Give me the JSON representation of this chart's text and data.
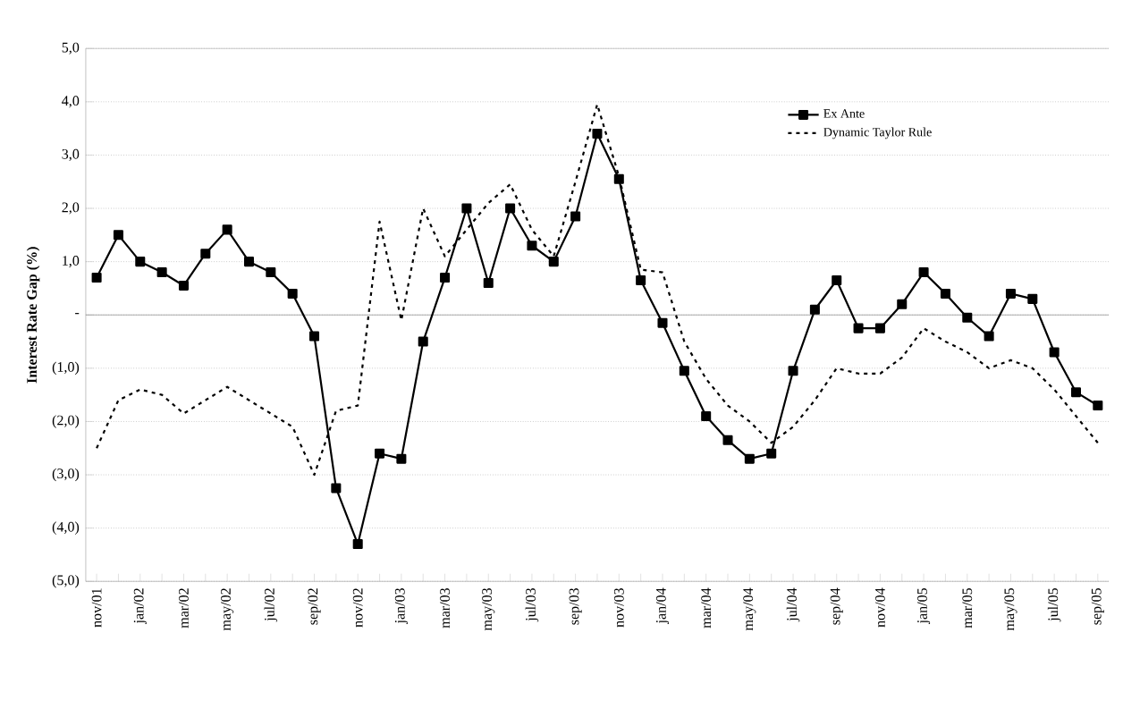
{
  "chart_data": {
    "type": "line",
    "ylabel": "**Interest Rate Gap (%)**",
    "categories": [
      "nov/01",
      null,
      "jan/02",
      null,
      "mar/02",
      null,
      "may/02",
      null,
      "jul/02",
      null,
      "sep/02",
      null,
      "nov/02",
      null,
      "jan/03",
      null,
      "mar/03",
      null,
      "may/03",
      null,
      "jul/03",
      null,
      "sep/03",
      null,
      "nov/03",
      null,
      "jan/04",
      null,
      "mar/04",
      null,
      "may/04",
      null,
      "jul/04",
      null,
      "sep/04",
      null,
      "nov/04",
      null,
      "jan/05",
      null,
      "mar/05",
      null,
      "may/05",
      null,
      "jul/05",
      null,
      "sep/05"
    ],
    "series": [
      {
        "name": "Ex Ante",
        "color": "#000000",
        "marker": "square",
        "line_style": "solid",
        "values": [
          0.7,
          1.5,
          1.0,
          0.8,
          0.55,
          1.15,
          1.6,
          1.0,
          0.8,
          0.4,
          -0.4,
          -3.25,
          -4.3,
          -2.6,
          -2.7,
          -0.5,
          0.7,
          2.0,
          0.6,
          2.0,
          1.3,
          1.0,
          1.85,
          3.4,
          2.55,
          0.65,
          -0.15,
          -1.05,
          -1.9,
          -2.35,
          -2.7,
          -2.6,
          -1.05,
          0.1,
          0.65,
          -0.25,
          -0.25,
          0.2,
          0.8,
          0.4,
          -0.05,
          -0.4,
          0.4,
          0.3,
          -0.7,
          -1.45,
          -1.7
        ]
      },
      {
        "name": "Dynamic Taylor Rule",
        "color": "#000000",
        "marker": "none",
        "line_style": "dotted",
        "values": [
          -2.5,
          -1.6,
          -1.4,
          -1.5,
          -1.85,
          -1.6,
          -1.35,
          -1.6,
          -1.85,
          -2.1,
          -3.0,
          -1.8,
          -1.7,
          1.75,
          -0.1,
          2.0,
          1.1,
          1.6,
          2.1,
          2.45,
          1.6,
          1.1,
          2.5,
          3.95,
          2.6,
          0.85,
          0.8,
          -0.5,
          -1.2,
          -1.7,
          -2.0,
          -2.4,
          -2.1,
          -1.6,
          -1.0,
          -1.1,
          -1.1,
          -0.8,
          -0.25,
          -0.5,
          -0.7,
          -1.0,
          -0.85,
          -1.0,
          -1.4,
          -1.9,
          -2.4
        ]
      }
    ],
    "ylim": [
      -5,
      5
    ],
    "yticks": [
      {
        "value": -5,
        "label": "(5,0)"
      },
      {
        "value": -4,
        "label": "(4,0)"
      },
      {
        "value": -3,
        "label": "(3,0)"
      },
      {
        "value": -2,
        "label": "(2,0)"
      },
      {
        "value": -1,
        "label": "(1,0)"
      },
      {
        "value": 0,
        "label": "-"
      },
      {
        "value": 1,
        "label": "1,0"
      },
      {
        "value": 2,
        "label": "2,0"
      },
      {
        "value": 3,
        "label": "3,0"
      },
      {
        "value": 4,
        "label": "4,0"
      },
      {
        "value": 5,
        "label": "5,0"
      }
    ],
    "grid": "y",
    "legend": "top right"
  }
}
